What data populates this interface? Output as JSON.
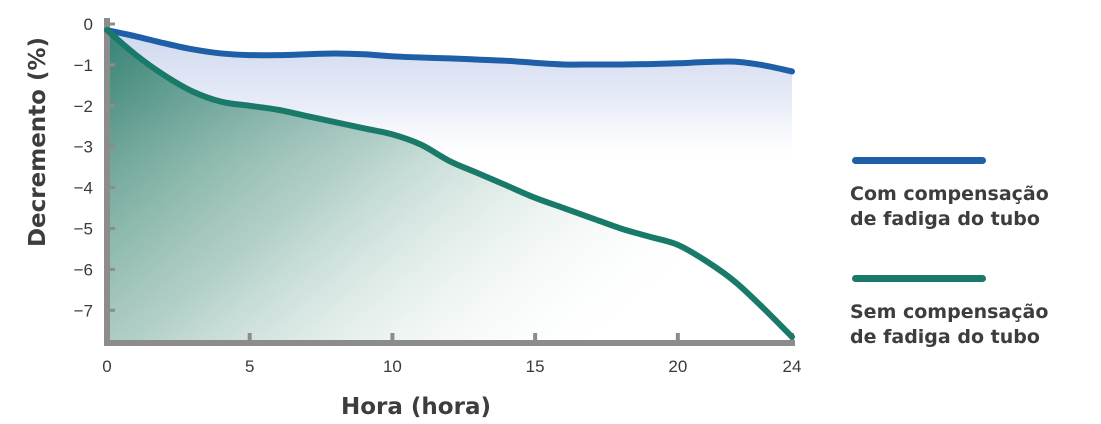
{
  "chart_data": {
    "type": "line",
    "xlabel": "Hora (hora)",
    "ylabel": "Decremento (%)",
    "xlim": [
      0,
      24
    ],
    "ylim": [
      -7.8,
      0
    ],
    "x_ticks": [
      0,
      5,
      10,
      15,
      20,
      24
    ],
    "y_ticks": [
      0,
      -1,
      -2,
      -3,
      -4,
      -5,
      -6,
      -7
    ],
    "x_tick_labels": [
      "0",
      "5",
      "10",
      "15",
      "20",
      "24"
    ],
    "y_tick_labels": [
      "0",
      "−1",
      "−2",
      "−3",
      "−4",
      "−5",
      "−6",
      "−7"
    ],
    "grid": false,
    "legend_position": "right",
    "series": [
      {
        "name": "Com compensação de fadiga do tubo",
        "legend_lines": [
          "Com compensação",
          "de fadiga do tubo"
        ],
        "color": "#1f5fa8",
        "x": [
          0,
          1,
          2,
          3,
          4,
          5,
          6,
          7,
          8,
          9,
          10,
          11,
          12,
          13,
          14,
          15,
          16,
          17,
          18,
          19,
          20,
          21,
          22,
          23,
          24
        ],
        "y": [
          -0.15,
          -0.3,
          -0.47,
          -0.62,
          -0.72,
          -0.76,
          -0.76,
          -0.74,
          -0.72,
          -0.74,
          -0.79,
          -0.82,
          -0.84,
          -0.87,
          -0.9,
          -0.95,
          -0.99,
          -0.99,
          -0.99,
          -0.98,
          -0.96,
          -0.93,
          -0.92,
          -1.01,
          -1.16
        ]
      },
      {
        "name": "Sem compensação de fadiga do tubo",
        "legend_lines": [
          "Sem compensação",
          "de fadiga do tubo"
        ],
        "color": "#1a7a6a",
        "x": [
          0,
          1,
          2,
          3,
          4,
          5,
          6,
          7,
          8,
          9,
          10,
          11,
          12,
          13,
          14,
          15,
          16,
          17,
          18,
          19,
          20,
          21,
          22,
          23,
          24
        ],
        "y": [
          -0.15,
          -0.75,
          -1.25,
          -1.65,
          -1.9,
          -2.0,
          -2.1,
          -2.25,
          -2.4,
          -2.55,
          -2.7,
          -2.95,
          -3.35,
          -3.65,
          -3.95,
          -4.25,
          -4.5,
          -4.75,
          -5.0,
          -5.2,
          -5.4,
          -5.8,
          -6.3,
          -6.95,
          -7.65
        ]
      }
    ]
  }
}
